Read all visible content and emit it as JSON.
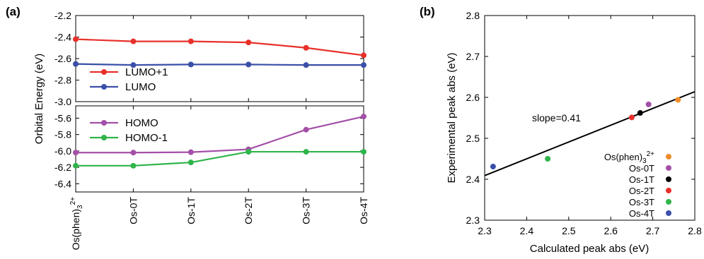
{
  "chart_data": [
    {
      "panel_label": "(a)",
      "type": "line",
      "categories": [
        "Os(phen)3 2+",
        "Os-0T",
        "Os-1T",
        "Os-2T",
        "Os-3T",
        "Os-4T"
      ],
      "ylabel": "Orbital Energy (eV)",
      "upper": {
        "ylim": [
          -3.0,
          -2.2
        ],
        "yticks": [
          "-2.2",
          "-2.4",
          "-2.6",
          "-2.8",
          "-3.0"
        ],
        "series": [
          {
            "name": "LUMO+1",
            "color": "#e8302a",
            "values": [
              -2.42,
              -2.44,
              -2.44,
              -2.45,
              -2.5,
              -2.57
            ]
          },
          {
            "name": "LUMO",
            "color": "#3a4fa8",
            "values": [
              -2.65,
              -2.66,
              -2.655,
              -2.655,
              -2.66,
              -2.66
            ]
          }
        ]
      },
      "lower": {
        "ylim": [
          -6.5,
          -5.45
        ],
        "yticks": [
          "-5.6",
          "-5.8",
          "-6.0",
          "-6.2",
          "-6.4"
        ],
        "series": [
          {
            "name": "HOMO",
            "color": "#a44fa8",
            "values": [
              -6.02,
              -6.02,
              -6.015,
              -5.98,
              -5.74,
              -5.58
            ]
          },
          {
            "name": "HOMO-1",
            "color": "#2fb44a",
            "values": [
              -6.18,
              -6.18,
              -6.14,
              -6.01,
              -6.01,
              -6.01
            ]
          }
        ]
      }
    },
    {
      "panel_label": "(b)",
      "type": "scatter",
      "xlabel": "Calculated peak abs (eV)",
      "ylabel": "Experimental peak abs (eV)",
      "xlim": [
        2.3,
        2.8
      ],
      "ylim": [
        2.3,
        2.8
      ],
      "xticks": [
        "2.3",
        "2.4",
        "2.5",
        "2.6",
        "2.7",
        "2.8"
      ],
      "yticks": [
        "2.3",
        "2.4",
        "2.5",
        "2.6",
        "2.7",
        "2.8"
      ],
      "annotation": "slope=0.41",
      "fit_line": {
        "x": [
          2.3,
          2.8
        ],
        "y": [
          2.409,
          2.614
        ]
      },
      "points": [
        {
          "name": "Os(phen)3 2+",
          "color": "#f08c2a",
          "x": 2.76,
          "y": 2.594
        },
        {
          "name": "Os-0T",
          "color": "#a44fa8",
          "x": 2.69,
          "y": 2.583
        },
        {
          "name": "Os-1T",
          "color": "#000000",
          "x": 2.67,
          "y": 2.562
        },
        {
          "name": "Os-2T",
          "color": "#e8302a",
          "x": 2.65,
          "y": 2.551
        },
        {
          "name": "Os-3T",
          "color": "#2fb44a",
          "x": 2.45,
          "y": 2.45
        },
        {
          "name": "Os-4T",
          "color": "#3a4fa8",
          "x": 2.32,
          "y": 2.431
        }
      ]
    }
  ]
}
